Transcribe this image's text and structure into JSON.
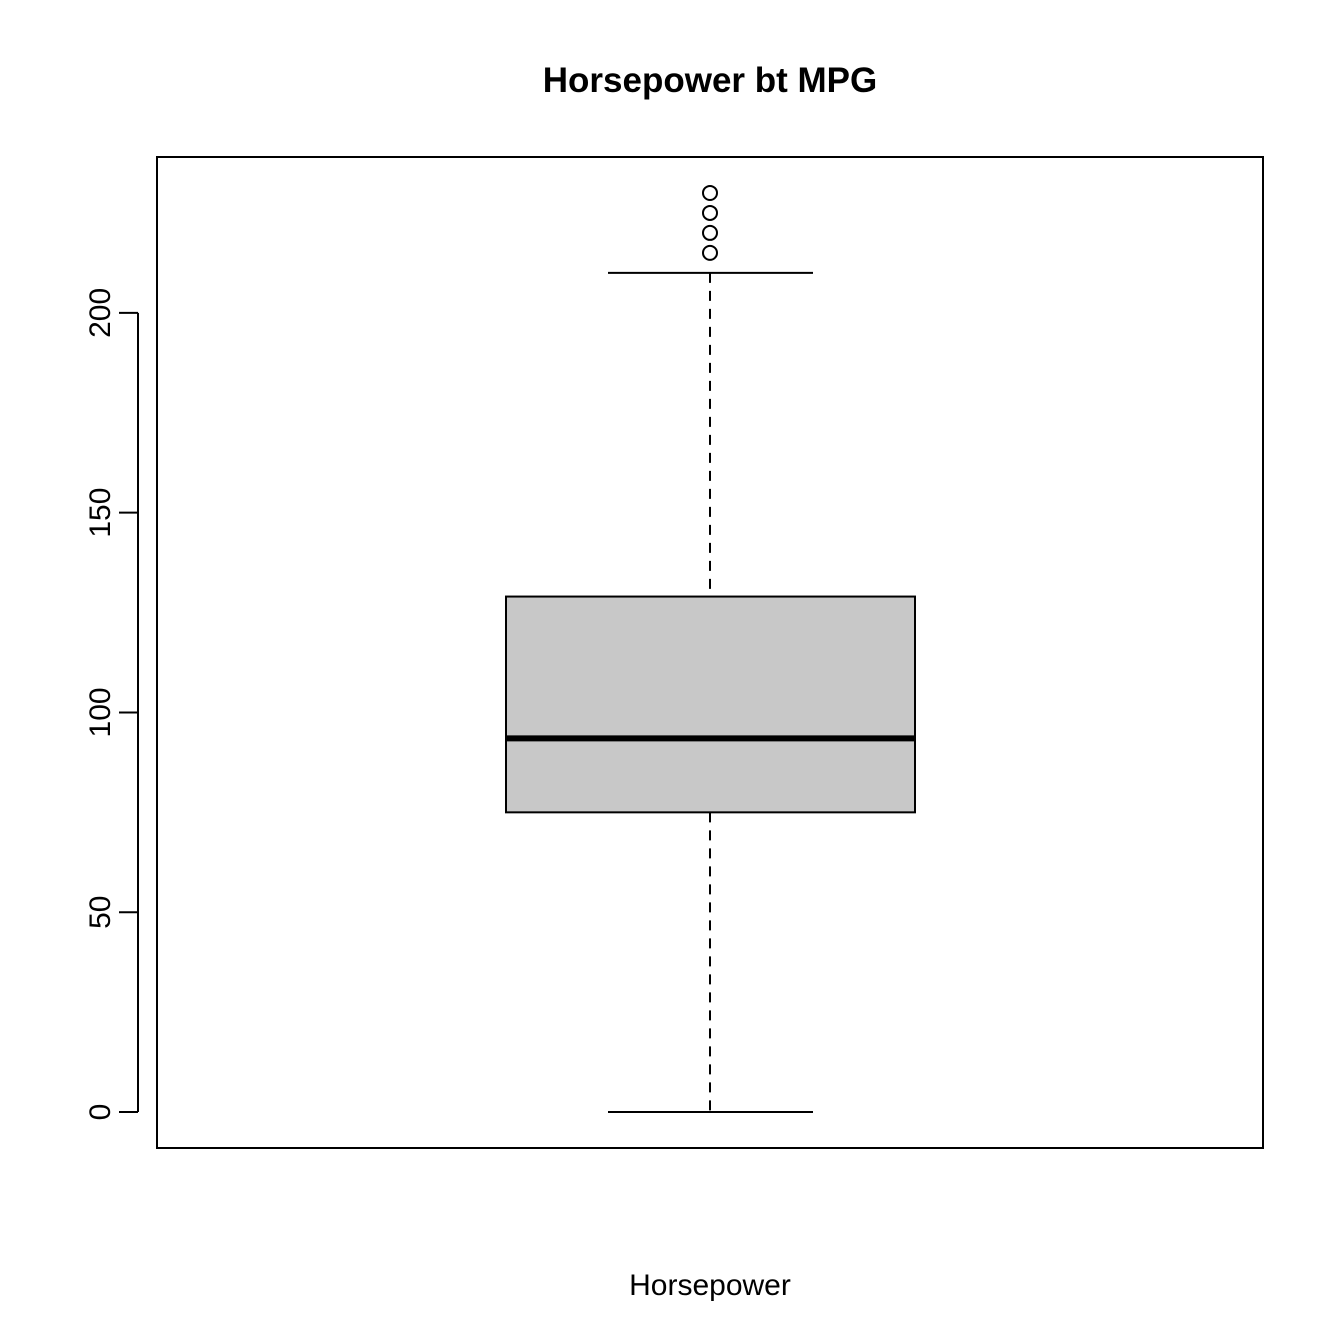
{
  "chart_data": {
    "type": "boxplot",
    "title": "Horsepower bt MPG",
    "xlabel": "Horsepower",
    "ylabel": "",
    "ylim": [
      -9,
      239
    ],
    "yticks": [
      0,
      50,
      100,
      150,
      200
    ],
    "box": {
      "whisker_low": 0,
      "q1": 75,
      "median": 93.5,
      "q3": 129,
      "whisker_high": 210,
      "outliers": [
        215,
        220,
        225,
        230
      ]
    },
    "colors": {
      "box_fill": "#c8c8c8",
      "line": "#000000"
    }
  }
}
